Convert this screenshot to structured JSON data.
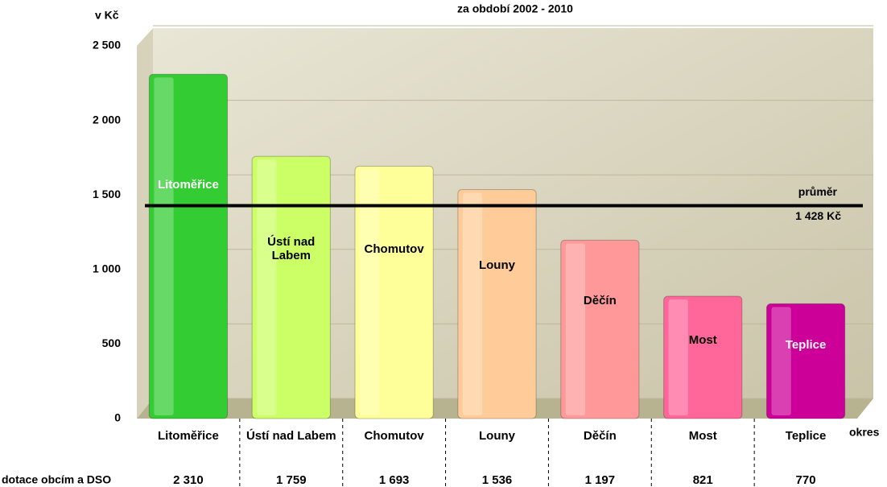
{
  "chart_data": {
    "type": "bar",
    "title": "za období 2002 - 2010",
    "y_label": "v Kč",
    "x_label": "okres",
    "categories": [
      "Litoměřice",
      "Ústí nad Labem",
      "Chomutov",
      "Louny",
      "Děčín",
      "Most",
      "Teplice"
    ],
    "values": [
      2310,
      1759,
      1693,
      1536,
      1197,
      821,
      770
    ],
    "value_labels": [
      "2 310",
      "1 759",
      "1 693",
      "1 536",
      "1 197",
      "821",
      "770"
    ],
    "colors": [
      "#33cc33",
      "#ccff66",
      "#ffff99",
      "#ffcc99",
      "#ff9999",
      "#ff6699",
      "#cc0099"
    ],
    "table_row_label": "dotace obcím a DSO",
    "average": {
      "value": 1428,
      "label": "1 428 Kč",
      "name": "průměr"
    },
    "ylim": [
      0,
      2500
    ],
    "yticks": [
      {
        "value": 0,
        "label": "0"
      },
      {
        "value": 500,
        "label": "500"
      },
      {
        "value": 1000,
        "label": "1 000"
      },
      {
        "value": 1500,
        "label": "1 500"
      },
      {
        "value": 2000,
        "label": "2 000"
      },
      {
        "value": 2500,
        "label": "2 500"
      }
    ],
    "grid": true
  }
}
